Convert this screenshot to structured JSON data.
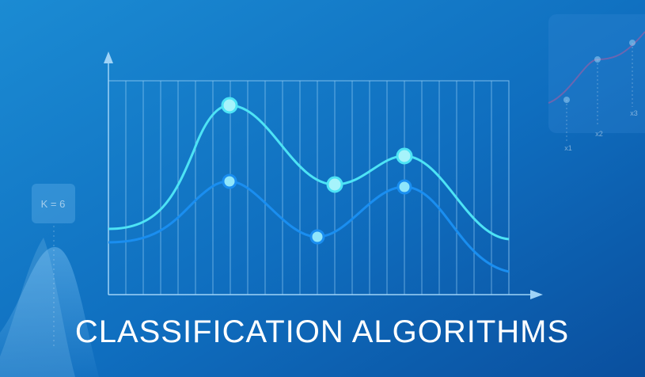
{
  "title": "CLASSIFICATION ALGORITHMS",
  "badge": "K = 6",
  "axis_marks": [
    "x1",
    "x2",
    "x3"
  ]
}
